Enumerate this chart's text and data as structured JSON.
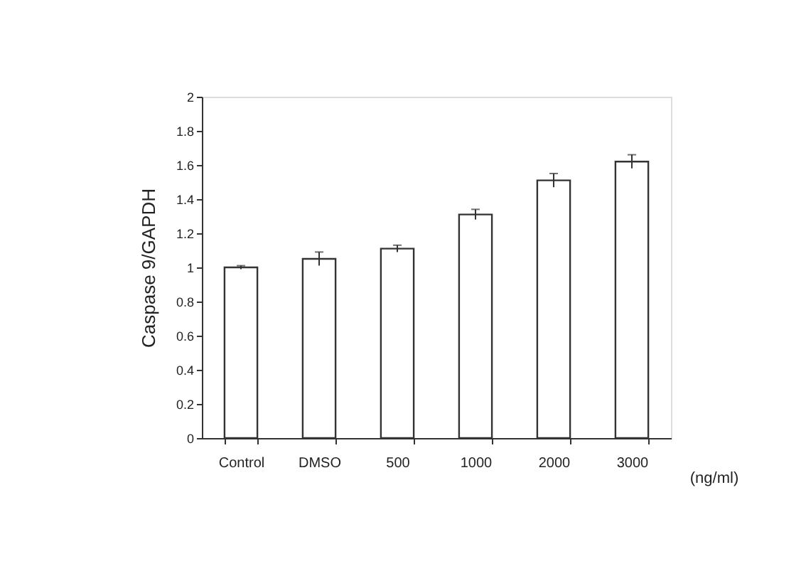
{
  "chart_data": {
    "type": "bar",
    "ylabel": "Caspase 9/GAPDH",
    "xlabel": "(ng/ml)",
    "categories": [
      "Control",
      "DMSO",
      "500",
      "1000",
      "2000",
      "3000"
    ],
    "values": [
      1.0,
      1.05,
      1.11,
      1.31,
      1.51,
      1.62
    ],
    "errors": [
      0.01,
      0.04,
      0.02,
      0.03,
      0.04,
      0.04
    ],
    "color": "#ffffff",
    "ylim": [
      0,
      2
    ],
    "yticks": [
      0,
      0.2,
      0.4,
      0.6,
      0.8,
      1,
      1.2,
      1.4,
      1.6,
      1.8,
      2
    ],
    "grid": false
  }
}
